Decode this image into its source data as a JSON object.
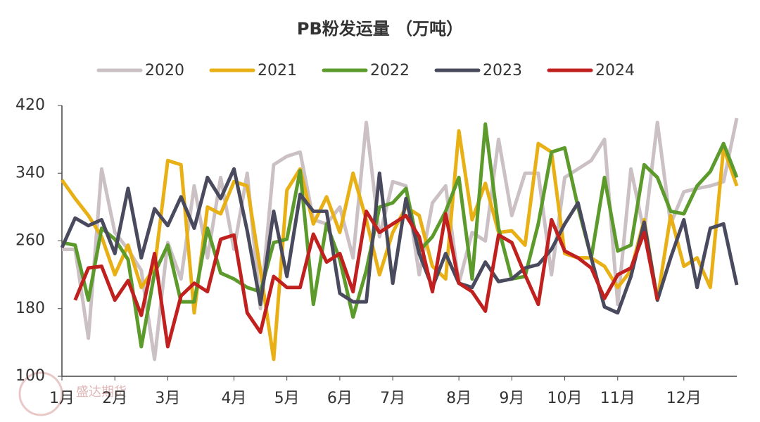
{
  "chart_data": {
    "type": "line",
    "title": "PB粉发运量 （万吨）",
    "watermark": "盛达期货",
    "categories": [
      "1月",
      null,
      null,
      null,
      "2月",
      null,
      null,
      null,
      "3月",
      null,
      null,
      null,
      null,
      "4月",
      null,
      null,
      null,
      "5月",
      null,
      null,
      null,
      "6月",
      null,
      null,
      null,
      "7月",
      null,
      null,
      null,
      null,
      "8月",
      null,
      null,
      null,
      "9月",
      null,
      null,
      null,
      "10月",
      null,
      null,
      null,
      "11月",
      null,
      null,
      null,
      null,
      "12月",
      null,
      null,
      null,
      null
    ],
    "series": [
      {
        "name": "2020",
        "color": "#cbc1c4",
        "values": [
          250,
          250,
          145,
          345,
          270,
          250,
          225,
          120,
          258,
          215,
          325,
          240,
          335,
          250,
          340,
          180,
          350,
          360,
          365,
          285,
          280,
          300,
          240,
          400,
          265,
          330,
          325,
          220,
          305,
          325,
          210,
          270,
          260,
          380,
          290,
          340,
          340,
          220,
          335,
          345,
          355,
          380,
          185,
          345,
          270,
          400,
          280,
          318,
          322,
          325,
          330,
          405
        ]
      },
      {
        "name": "2021",
        "color": "#e8b015",
        "values": [
          332,
          310,
          290,
          265,
          220,
          255,
          205,
          228,
          355,
          350,
          175,
          300,
          292,
          330,
          325,
          225,
          120,
          320,
          345,
          280,
          312,
          270,
          340,
          285,
          220,
          270,
          300,
          290,
          230,
          215,
          390,
          285,
          328,
          270,
          272,
          255,
          375,
          365,
          245,
          240,
          240,
          230,
          205,
          225,
          285,
          190,
          290,
          230,
          240,
          205,
          370,
          325
        ]
      },
      {
        "name": "2022",
        "color": "#5b9a2b",
        "values": [
          258,
          255,
          190,
          275,
          262,
          238,
          135,
          222,
          255,
          188,
          188,
          275,
          222,
          215,
          205,
          200,
          258,
          262,
          343,
          185,
          280,
          238,
          170,
          225,
          300,
          305,
          322,
          248,
          265,
          295,
          335,
          215,
          398,
          275,
          215,
          218,
          280,
          365,
          370,
          300,
          240,
          335,
          248,
          255,
          350,
          335,
          295,
          292,
          325,
          342,
          375,
          335
        ]
      },
      {
        "name": "2023",
        "color": "#4a4a5e",
        "values": [
          252,
          287,
          278,
          285,
          245,
          322,
          240,
          298,
          278,
          312,
          275,
          335,
          310,
          345,
          272,
          185,
          295,
          218,
          315,
          295,
          295,
          198,
          188,
          188,
          340,
          210,
          310,
          245,
          205,
          245,
          210,
          205,
          235,
          212,
          215,
          228,
          232,
          250,
          280,
          305,
          240,
          182,
          175,
          218,
          282,
          190,
          240,
          285,
          205,
          275,
          280,
          208
        ]
      },
      {
        "name": "2024",
        "color": "#c0201e",
        "values": [
          null,
          190,
          228,
          230,
          190,
          213,
          172,
          245,
          135,
          195,
          210,
          200,
          262,
          267,
          175,
          152,
          218,
          205,
          205,
          268,
          235,
          245,
          200,
          295,
          270,
          280,
          290,
          265,
          200,
          292,
          210,
          200,
          177,
          267,
          258,
          220,
          185,
          285,
          248,
          240,
          228,
          192,
          220,
          228,
          270,
          190,
          null,
          null,
          null,
          null,
          null,
          null
        ]
      }
    ],
    "ylim": [
      100,
      420
    ],
    "yticks": [
      100,
      180,
      260,
      340,
      420
    ]
  }
}
